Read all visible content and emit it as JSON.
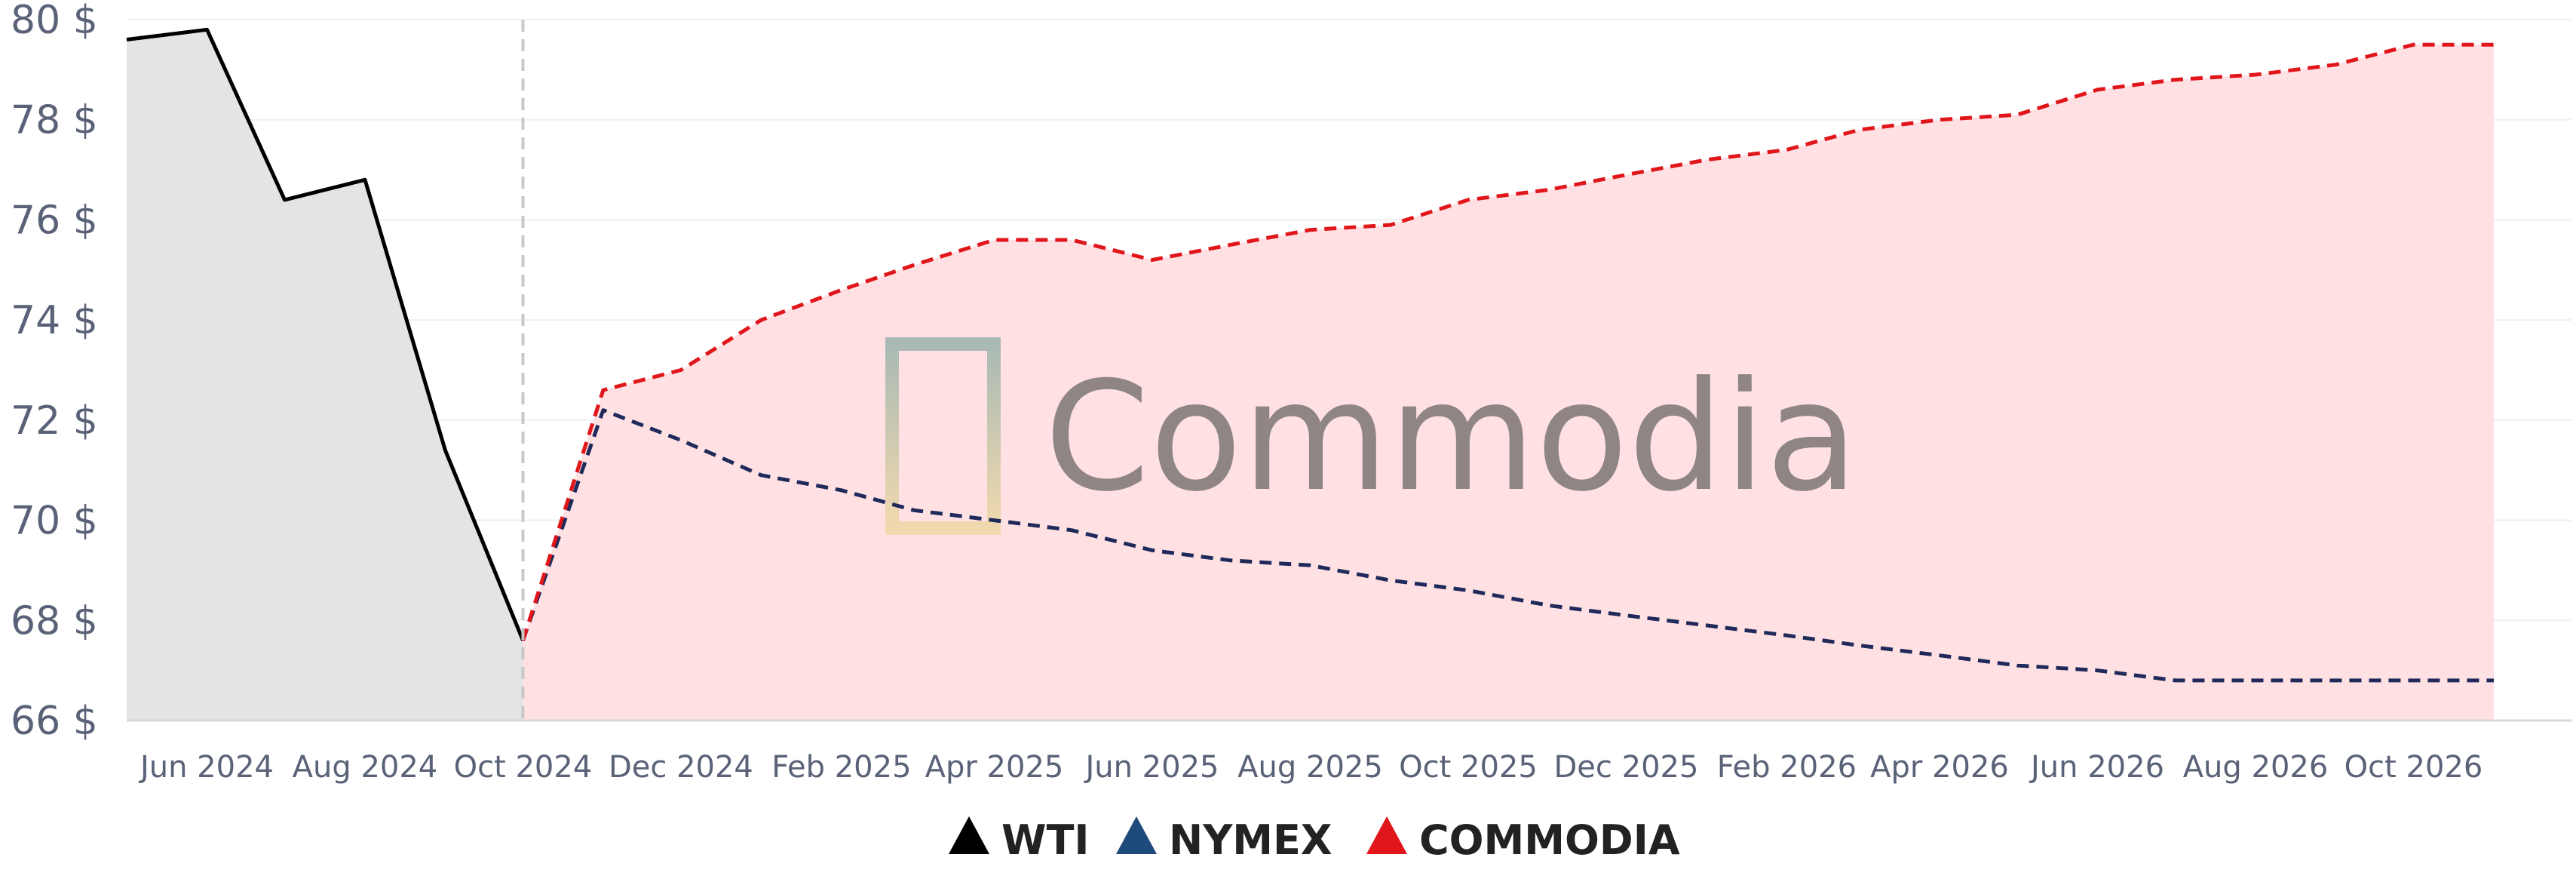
{
  "chart_data": {
    "type": "line",
    "y_unit_suffix": " $",
    "ylim": [
      66,
      80
    ],
    "yticks": [
      66,
      68,
      70,
      72,
      74,
      76,
      78,
      80
    ],
    "xlim": [
      "2024-05-01",
      "2026-12-01"
    ],
    "x_tick_labels": [
      "Jun 2024",
      "Aug 2024",
      "Oct 2024",
      "Dec 2024",
      "Feb 2025",
      "Apr 2025",
      "Jun 2025",
      "Aug 2025",
      "Oct 2025",
      "Dec 2025",
      "Feb 2026",
      "Apr 2026",
      "Jun 2026",
      "Aug 2026",
      "Oct 2026"
    ],
    "x_tick_dates": [
      "2024-06-01",
      "2024-08-01",
      "2024-10-01",
      "2024-12-01",
      "2025-02-01",
      "2025-04-01",
      "2025-06-01",
      "2025-08-01",
      "2025-10-01",
      "2025-12-01",
      "2026-02-01",
      "2026-04-01",
      "2026-06-01",
      "2026-08-01",
      "2026-10-01"
    ],
    "forecast_start": "2024-10-01",
    "grid": "horizontal",
    "legend_position": "bottom-center",
    "series": [
      {
        "name": "WTI",
        "color": "#000000",
        "style": "solid",
        "fill": "#e4e4e4",
        "x": [
          "2024-05-01",
          "2024-06-01",
          "2024-07-01",
          "2024-08-01",
          "2024-09-01",
          "2024-10-01"
        ],
        "y": [
          79.6,
          79.8,
          76.4,
          76.8,
          71.4,
          67.6
        ]
      },
      {
        "name": "NYMEX",
        "color": "#1f2a5a",
        "style": "dashed",
        "fill": "#d9c3cc",
        "x": [
          "2024-10-01",
          "2024-11-01",
          "2024-12-01",
          "2025-01-01",
          "2025-02-01",
          "2025-03-01",
          "2025-04-01",
          "2025-05-01",
          "2025-06-01",
          "2025-07-01",
          "2025-08-01",
          "2025-09-01",
          "2025-10-01",
          "2025-11-01",
          "2025-12-01",
          "2026-01-01",
          "2026-02-01",
          "2026-03-01",
          "2026-04-01",
          "2026-05-01",
          "2026-06-01",
          "2026-07-01",
          "2026-08-01",
          "2026-09-01",
          "2026-10-01",
          "2026-11-01"
        ],
        "y": [
          67.6,
          72.2,
          71.6,
          70.9,
          70.6,
          70.2,
          70.0,
          69.8,
          69.4,
          69.2,
          69.1,
          68.8,
          68.6,
          68.3,
          68.1,
          67.9,
          67.7,
          67.5,
          67.3,
          67.1,
          67.0,
          66.8,
          66.8,
          66.8,
          66.8,
          66.8
        ]
      },
      {
        "name": "COMMODIA",
        "color": "#e0161b",
        "style": "dashed",
        "fill": "#ffe1e4",
        "x": [
          "2024-10-01",
          "2024-11-01",
          "2024-12-01",
          "2025-01-01",
          "2025-02-01",
          "2025-03-01",
          "2025-04-01",
          "2025-05-01",
          "2025-06-01",
          "2025-07-01",
          "2025-08-01",
          "2025-09-01",
          "2025-10-01",
          "2025-11-01",
          "2025-12-01",
          "2026-01-01",
          "2026-02-01",
          "2026-03-01",
          "2026-04-01",
          "2026-05-01",
          "2026-06-01",
          "2026-07-01",
          "2026-08-01",
          "2026-09-01",
          "2026-10-01",
          "2026-11-01"
        ],
        "y": [
          67.6,
          72.6,
          73.0,
          74.0,
          74.6,
          75.1,
          75.6,
          75.6,
          75.2,
          75.5,
          75.8,
          75.9,
          76.4,
          76.6,
          76.9,
          77.2,
          77.4,
          77.8,
          78.0,
          78.1,
          78.6,
          78.8,
          78.9,
          79.1,
          79.5,
          79.5
        ]
      }
    ]
  },
  "watermark": {
    "text": "Commodia"
  }
}
